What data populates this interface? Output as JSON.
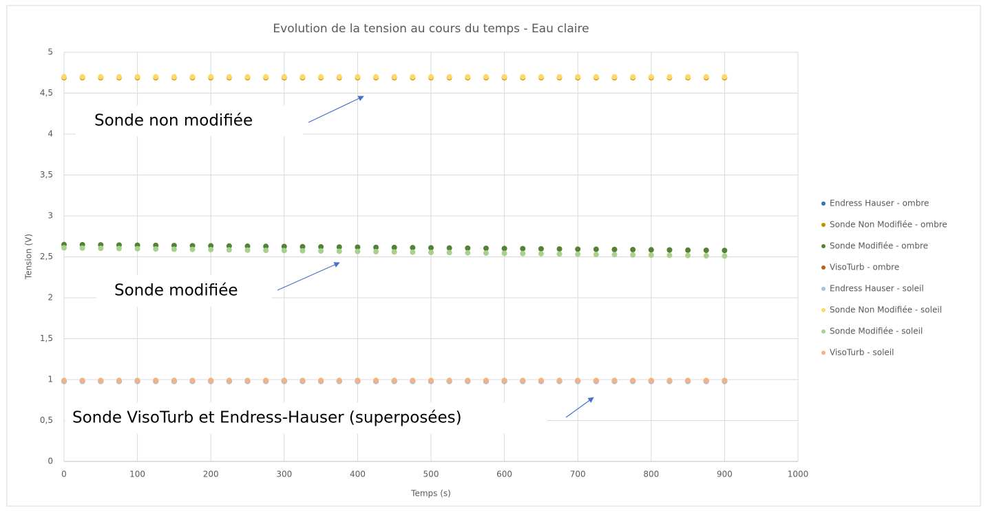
{
  "chart_data": {
    "type": "scatter",
    "title": "Evolution de la tension au cours du temps - Eau claire",
    "xlabel": "Temps (s)",
    "ylabel": "Tension (V)",
    "xlim": [
      0,
      1000
    ],
    "xticks": [
      0,
      100,
      200,
      300,
      400,
      500,
      600,
      700,
      800,
      900,
      1000
    ],
    "ylim": [
      0,
      5
    ],
    "yticks": [
      0,
      {
        "value": 0.5,
        "label": "0,5"
      },
      1,
      {
        "value": 1.5,
        "label": "1,5"
      },
      2,
      {
        "value": 2.5,
        "label": "2,5"
      },
      3,
      {
        "value": 3.5,
        "label": "3,5"
      },
      4,
      {
        "value": 4.5,
        "label": "4,5"
      },
      5
    ],
    "grid": true,
    "legend": "right",
    "x": [
      0,
      25,
      50,
      75,
      100,
      125,
      150,
      175,
      200,
      225,
      250,
      275,
      300,
      325,
      350,
      375,
      400,
      425,
      450,
      475,
      500,
      525,
      550,
      575,
      600,
      625,
      650,
      675,
      700,
      725,
      750,
      775,
      800,
      825,
      850,
      875,
      900
    ],
    "series": [
      {
        "name": "Endress Hauser - ombre",
        "color": "#2e75b6",
        "values": [
          0.98,
          0.98,
          0.98,
          0.98,
          0.98,
          0.98,
          0.98,
          0.98,
          0.98,
          0.98,
          0.98,
          0.98,
          0.98,
          0.98,
          0.98,
          0.98,
          0.98,
          0.98,
          0.98,
          0.98,
          0.98,
          0.98,
          0.98,
          0.98,
          0.98,
          0.98,
          0.98,
          0.98,
          0.98,
          0.98,
          0.98,
          0.98,
          0.98,
          0.98,
          0.98,
          0.98,
          0.98
        ]
      },
      {
        "name": "Sonde Non Modifiée - ombre",
        "color": "#bf9000",
        "values": [
          4.69,
          4.69,
          4.69,
          4.69,
          4.69,
          4.69,
          4.69,
          4.69,
          4.69,
          4.69,
          4.69,
          4.69,
          4.69,
          4.69,
          4.69,
          4.69,
          4.69,
          4.69,
          4.69,
          4.69,
          4.69,
          4.69,
          4.69,
          4.69,
          4.69,
          4.69,
          4.69,
          4.69,
          4.69,
          4.69,
          4.69,
          4.69,
          4.69,
          4.69,
          4.69,
          4.69,
          4.69
        ]
      },
      {
        "name": "Sonde Modifiée - ombre",
        "color": "#548235",
        "values": [
          2.65,
          2.648,
          2.646,
          2.644,
          2.642,
          2.64,
          2.638,
          2.636,
          2.634,
          2.632,
          2.63,
          2.628,
          2.626,
          2.624,
          2.622,
          2.62,
          2.618,
          2.616,
          2.614,
          2.612,
          2.61,
          2.608,
          2.606,
          2.604,
          2.602,
          2.6,
          2.598,
          2.596,
          2.594,
          2.592,
          2.59,
          2.588,
          2.586,
          2.584,
          2.582,
          2.58,
          2.578
        ]
      },
      {
        "name": "VisoTurb - ombre",
        "color": "#c55a11",
        "values": [
          0.98,
          0.98,
          0.98,
          0.98,
          0.98,
          0.98,
          0.98,
          0.98,
          0.98,
          0.98,
          0.98,
          0.98,
          0.98,
          0.98,
          0.98,
          0.98,
          0.98,
          0.98,
          0.98,
          0.98,
          0.98,
          0.98,
          0.98,
          0.98,
          0.98,
          0.98,
          0.98,
          0.98,
          0.98,
          0.98,
          0.98,
          0.98,
          0.98,
          0.98,
          0.98,
          0.98,
          0.98
        ]
      },
      {
        "name": "Endress Hauser - soleil",
        "color": "#9dc3e6",
        "values": [
          0.98,
          0.98,
          0.98,
          0.98,
          0.98,
          0.98,
          0.98,
          0.98,
          0.98,
          0.98,
          0.98,
          0.98,
          0.98,
          0.98,
          0.98,
          0.98,
          0.98,
          0.98,
          0.98,
          0.98,
          0.98,
          0.98,
          0.98,
          0.98,
          0.98,
          0.98,
          0.98,
          0.98,
          0.98,
          0.98,
          0.98,
          0.98,
          0.98,
          0.98,
          0.98,
          0.98,
          0.98
        ]
      },
      {
        "name": "Sonde Non Modifiée - soleil",
        "color": "#ffd966",
        "values": [
          4.7,
          4.7,
          4.7,
          4.7,
          4.7,
          4.7,
          4.7,
          4.7,
          4.7,
          4.7,
          4.7,
          4.7,
          4.7,
          4.7,
          4.7,
          4.7,
          4.7,
          4.7,
          4.7,
          4.7,
          4.7,
          4.7,
          4.7,
          4.7,
          4.7,
          4.7,
          4.7,
          4.7,
          4.7,
          4.7,
          4.7,
          4.7,
          4.7,
          4.7,
          4.7,
          4.7,
          4.7
        ]
      },
      {
        "name": "Sonde Modifiée - soleil",
        "color": "#a9d18e",
        "values": [
          2.61,
          2.607,
          2.604,
          2.602,
          2.599,
          2.596,
          2.593,
          2.591,
          2.588,
          2.585,
          2.582,
          2.579,
          2.577,
          2.574,
          2.571,
          2.568,
          2.566,
          2.563,
          2.56,
          2.557,
          2.554,
          2.552,
          2.549,
          2.546,
          2.543,
          2.541,
          2.538,
          2.535,
          2.532,
          2.529,
          2.527,
          2.524,
          2.521,
          2.518,
          2.516,
          2.513,
          2.51
        ]
      },
      {
        "name": "VisoTurb - soleil",
        "color": "#f4b183",
        "values": [
          0.99,
          0.99,
          0.99,
          0.99,
          0.99,
          0.99,
          0.99,
          0.99,
          0.99,
          0.99,
          0.99,
          0.99,
          0.99,
          0.99,
          0.99,
          0.99,
          0.99,
          0.99,
          0.99,
          0.99,
          0.99,
          0.99,
          0.99,
          0.99,
          0.99,
          0.99,
          0.99,
          0.99,
          0.99,
          0.99,
          0.99,
          0.99,
          0.99,
          0.99,
          0.99,
          0.99,
          0.99
        ]
      }
    ],
    "annotations": [
      "Sonde non modifiée",
      "Sonde modifiée",
      "Sonde VisoTurb et Endress-Hauser (superposées)"
    ]
  }
}
